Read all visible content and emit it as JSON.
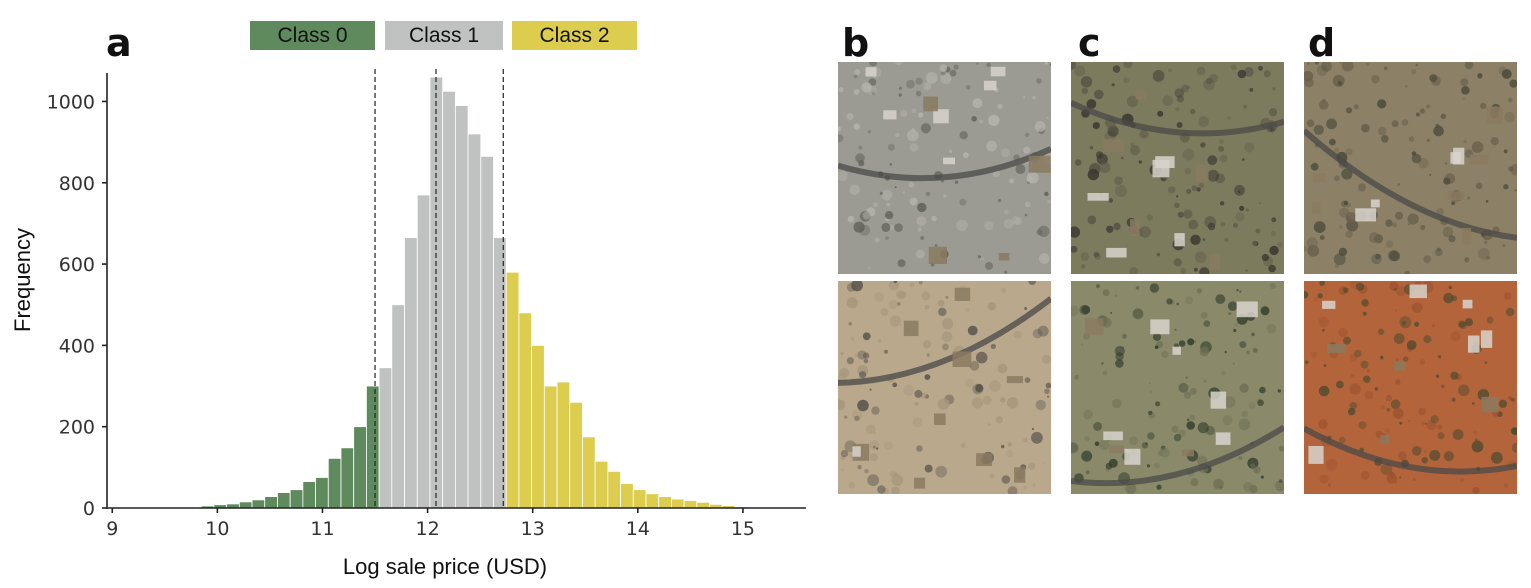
{
  "panels": {
    "a": "a",
    "b": "b",
    "c": "c",
    "d": "d"
  },
  "legend": [
    {
      "label": "Class 0",
      "color": "#5f8a5e"
    },
    {
      "label": "Class 1",
      "color": "#c0c2c2"
    },
    {
      "label": "Class 2",
      "color": "#dccd4f"
    }
  ],
  "chart_data": {
    "type": "bar",
    "xlabel": "Log sale price (USD)",
    "ylabel": "Frequency",
    "xlim": [
      8.95,
      15.6
    ],
    "ylim": [
      0,
      1070
    ],
    "xticks": [
      "9",
      "10",
      "11",
      "12",
      "13",
      "14",
      "15"
    ],
    "yticks": [
      "0",
      "200",
      "400",
      "600",
      "800",
      "1000"
    ],
    "bin_width": 0.1209,
    "class_boundaries": [
      11.5,
      12.08,
      12.72
    ],
    "class_colors": [
      "#5f8a5e",
      "#c0c2c2",
      "#dccd4f"
    ],
    "bin_start": 9.0,
    "values": [
      0,
      1,
      1,
      1,
      1,
      1,
      2,
      5,
      8,
      10,
      15,
      20,
      28,
      38,
      45,
      65,
      75,
      122,
      148,
      200,
      300,
      345,
      500,
      665,
      770,
      1060,
      1025,
      990,
      920,
      865,
      665,
      580,
      480,
      400,
      300,
      310,
      260,
      175,
      115,
      90,
      60,
      45,
      35,
      28,
      22,
      18,
      14,
      9,
      6,
      3,
      2,
      1,
      1,
      1,
      0
    ]
  },
  "satellite_tiles": [
    {
      "panel": "b",
      "row": "top",
      "palette": [
        "#9b9a93",
        "#b6b4ad",
        "#5e5f55"
      ]
    },
    {
      "panel": "b",
      "row": "bottom",
      "palette": [
        "#b9a88c",
        "#a6957b",
        "#55514a"
      ]
    },
    {
      "panel": "c",
      "row": "top",
      "palette": [
        "#7c7b5e",
        "#5f5b48",
        "#38352f"
      ]
    },
    {
      "panel": "c",
      "row": "bottom",
      "palette": [
        "#8a8a6a",
        "#6f6f55",
        "#2f3a2a"
      ]
    },
    {
      "panel": "d",
      "row": "top",
      "palette": [
        "#8c8066",
        "#6a604c",
        "#4a4a3a"
      ]
    },
    {
      "panel": "d",
      "row": "bottom",
      "palette": [
        "#b4643a",
        "#9c5330",
        "#4f4a2f"
      ]
    }
  ]
}
